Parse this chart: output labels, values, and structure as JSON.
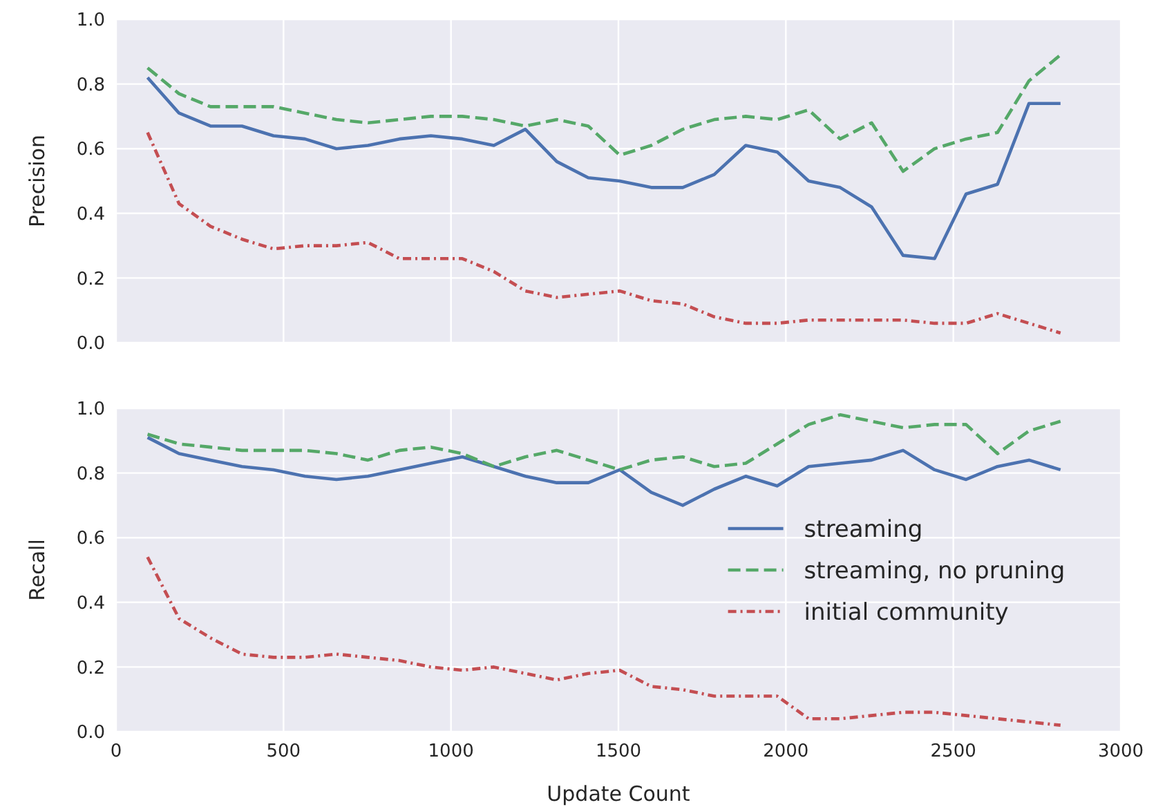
{
  "chart_data": [
    {
      "type": "line",
      "ylabel": "Precision",
      "x": [
        94,
        188,
        282,
        376,
        470,
        564,
        658,
        752,
        846,
        940,
        1034,
        1128,
        1222,
        1316,
        1410,
        1504,
        1598,
        1692,
        1786,
        1880,
        1974,
        2068,
        2162,
        2256,
        2350,
        2444,
        2538,
        2632,
        2726,
        2820
      ],
      "series": [
        {
          "color": "#4c72b0",
          "line_style": "solid",
          "values": [
            0.82,
            0.71,
            0.67,
            0.67,
            0.64,
            0.63,
            0.6,
            0.61,
            0.63,
            0.64,
            0.63,
            0.61,
            0.66,
            0.56,
            0.51,
            0.5,
            0.48,
            0.48,
            0.52,
            0.61,
            0.59,
            0.5,
            0.48,
            0.42,
            0.27,
            0.26,
            0.46,
            0.49,
            0.74,
            0.74
          ]
        },
        {
          "color": "#55a868",
          "line_style": "dashed",
          "values": [
            0.85,
            0.77,
            0.73,
            0.73,
            0.73,
            0.71,
            0.69,
            0.68,
            0.69,
            0.7,
            0.7,
            0.69,
            0.67,
            0.69,
            0.67,
            0.58,
            0.61,
            0.66,
            0.69,
            0.7,
            0.69,
            0.72,
            0.63,
            0.68,
            0.53,
            0.6,
            0.63,
            0.65,
            0.81,
            0.89
          ]
        },
        {
          "color": "#c44e52",
          "line_style": "dotted",
          "values": [
            0.65,
            0.43,
            0.36,
            0.32,
            0.29,
            0.3,
            0.3,
            0.31,
            0.26,
            0.26,
            0.26,
            0.22,
            0.16,
            0.14,
            0.15,
            0.16,
            0.13,
            0.12,
            0.08,
            0.06,
            0.06,
            0.07,
            0.07,
            0.07,
            0.07,
            0.06,
            0.06,
            0.09,
            0.06,
            0.03
          ]
        }
      ],
      "xlim": [
        0,
        3000
      ],
      "xticks": [
        0,
        500,
        1000,
        1500,
        2000,
        2500,
        3000
      ],
      "ylim": [
        0,
        1
      ],
      "yticks": [
        {
          "value": 0,
          "label": "0.0"
        },
        {
          "value": 0.2,
          "label": "0.2"
        },
        {
          "value": 0.4,
          "label": "0.4"
        },
        {
          "value": 0.6,
          "label": "0.6"
        },
        {
          "value": 0.8,
          "label": "0.8"
        },
        {
          "value": 1,
          "label": "1.0"
        }
      ],
      "grid": true,
      "tick_labels": "y"
    },
    {
      "type": "line",
      "ylabel": "Recall",
      "xlabel": "Update Count",
      "x": [
        94,
        188,
        282,
        376,
        470,
        564,
        658,
        752,
        846,
        940,
        1034,
        1128,
        1222,
        1316,
        1410,
        1504,
        1598,
        1692,
        1786,
        1880,
        1974,
        2068,
        2162,
        2256,
        2350,
        2444,
        2538,
        2632,
        2726,
        2820
      ],
      "series": [
        {
          "name": "streaming",
          "color": "#4c72b0",
          "line_style": "solid",
          "values": [
            0.91,
            0.86,
            0.84,
            0.82,
            0.81,
            0.79,
            0.78,
            0.79,
            0.81,
            0.83,
            0.85,
            0.82,
            0.79,
            0.77,
            0.77,
            0.81,
            0.74,
            0.7,
            0.75,
            0.79,
            0.76,
            0.82,
            0.83,
            0.84,
            0.87,
            0.81,
            0.78,
            0.82,
            0.84,
            0.81
          ]
        },
        {
          "name": "streaming, no pruning",
          "color": "#55a868",
          "line_style": "dashed",
          "values": [
            0.92,
            0.89,
            0.88,
            0.87,
            0.87,
            0.87,
            0.86,
            0.84,
            0.87,
            0.88,
            0.86,
            0.82,
            0.85,
            0.87,
            0.84,
            0.81,
            0.84,
            0.85,
            0.82,
            0.83,
            0.89,
            0.95,
            0.98,
            0.96,
            0.94,
            0.95,
            0.95,
            0.86,
            0.93,
            0.96
          ]
        },
        {
          "name": "initial community",
          "color": "#c44e52",
          "line_style": "dotted",
          "values": [
            0.54,
            0.35,
            0.29,
            0.24,
            0.23,
            0.23,
            0.24,
            0.23,
            0.22,
            0.2,
            0.19,
            0.2,
            0.18,
            0.16,
            0.18,
            0.19,
            0.14,
            0.13,
            0.11,
            0.11,
            0.11,
            0.04,
            0.04,
            0.05,
            0.06,
            0.06,
            0.05,
            0.04,
            0.03,
            0.02
          ]
        }
      ],
      "xlim": [
        0,
        3000
      ],
      "xticks": [
        0,
        500,
        1000,
        1500,
        2000,
        2500,
        3000
      ],
      "ylim": [
        0,
        1
      ],
      "yticks": [
        {
          "value": 0,
          "label": "0.0"
        },
        {
          "value": 0.2,
          "label": "0.2"
        },
        {
          "value": 0.4,
          "label": "0.4"
        },
        {
          "value": 0.6,
          "label": "0.6"
        },
        {
          "value": 0.8,
          "label": "0.8"
        },
        {
          "value": 1,
          "label": "1.0"
        }
      ],
      "grid": true,
      "legend": "right"
    }
  ]
}
